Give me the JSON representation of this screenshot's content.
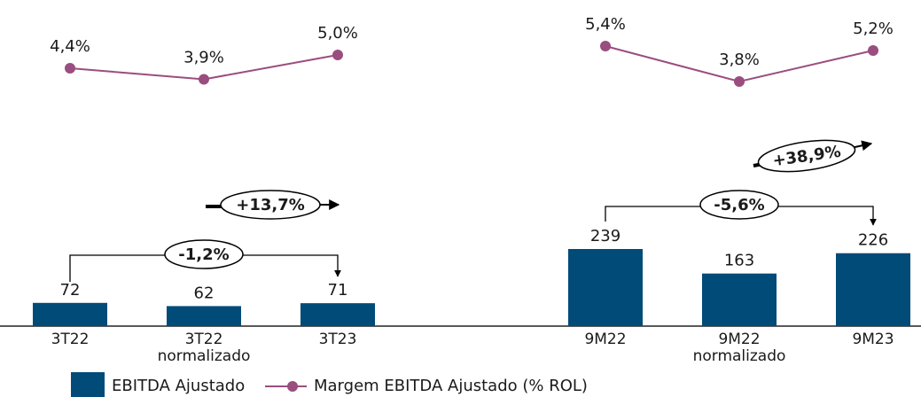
{
  "chart_data": {
    "type": "combo",
    "categories": [
      "3T22",
      "3T22 normalizado",
      "3T23",
      "9M22",
      "9M22 normalizado",
      "9M23"
    ],
    "series": [
      {
        "name": "EBITDA Ajustado",
        "type": "bar",
        "color": "#004b78",
        "values": [
          72,
          62,
          71,
          239,
          163,
          226
        ]
      },
      {
        "name": "Margem EBITDA Ajustado (% ROL)",
        "type": "line",
        "color": "#9a4d7f",
        "values": [
          4.4,
          3.9,
          5.0,
          5.4,
          3.8,
          5.2
        ],
        "value_labels": [
          "4,4%",
          "3,9%",
          "5,0%",
          "5,4%",
          "3,8%",
          "5,2%"
        ]
      }
    ],
    "annotations": [
      "-1,2%",
      "+13,7%",
      "-5,6%",
      "+38,9%"
    ]
  }
}
